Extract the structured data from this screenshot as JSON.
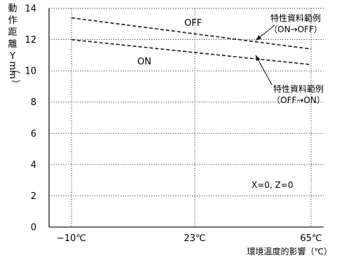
{
  "chart_data": {
    "type": "line",
    "title": "",
    "xlabel": "環境溫度的影響（℃）",
    "ylabel": [
      "動",
      "作",
      "距",
      "離",
      "Y",
      "（",
      "mm",
      "）"
    ],
    "xlim": [
      -10,
      65
    ],
    "ylim": [
      0,
      14
    ],
    "x_ticks": [
      -10,
      23,
      65
    ],
    "x_tick_labels": [
      "−10℃",
      "23℃",
      "65℃"
    ],
    "y_ticks": [
      0,
      2,
      4,
      6,
      8,
      10,
      12,
      14
    ],
    "y_tick_labels": [
      "0",
      "2",
      "4",
      "6",
      "8",
      "10",
      "12",
      "14"
    ],
    "grid": true,
    "grid_style": "dotted",
    "series": [
      {
        "name": "OFF",
        "line_style": "dashed",
        "x": [
          -10,
          65
        ],
        "y": [
          13.4,
          11.4
        ]
      },
      {
        "name": "ON",
        "line_style": "dashed",
        "x": [
          -10,
          65
        ],
        "y": [
          12.0,
          10.4
        ]
      }
    ],
    "annotations": [
      {
        "lines": [
          "特性資料範例",
          "（ON→OFF）"
        ],
        "arrow_to": [
          45,
          11.95
        ]
      },
      {
        "lines": [
          "特性資料範例",
          "（OFF→ON）"
        ],
        "arrow_to": [
          45,
          11.0
        ]
      }
    ],
    "condition_text": "X=0, Z=0",
    "colors": {
      "line": "#1a1a1a",
      "grid": "#1a1a1a"
    }
  }
}
